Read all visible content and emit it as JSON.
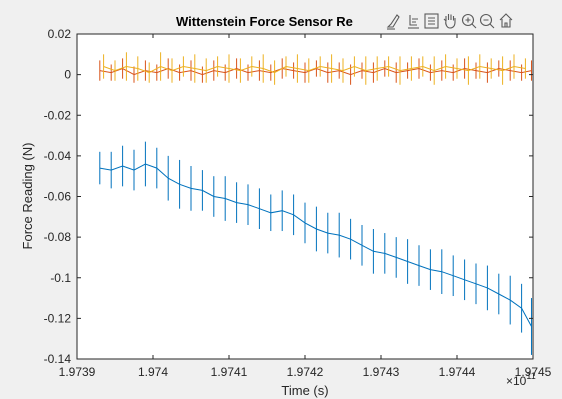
{
  "toolbar": {
    "icons": [
      "brush-icon",
      "data-tips-icon",
      "legend-icon",
      "pan-icon",
      "zoom-in-icon",
      "zoom-out-icon",
      "home-icon"
    ]
  },
  "chart_data": {
    "type": "line",
    "title": "Wittenstein Force Sensor Re",
    "xlabel": "Time (s)",
    "ylabel": "Force Reading (N)",
    "x_exponent_label": "×10",
    "x_exponent_power": "11",
    "xlim": [
      1.9739,
      1.9745
    ],
    "ylim": [
      -0.14,
      0.02
    ],
    "x_ticks": [
      1.9739,
      1.974,
      1.9741,
      1.9742,
      1.9743,
      1.9744,
      1.9745
    ],
    "x_tick_labels": [
      "1.9739",
      "1.974",
      "1.9741",
      "1.9742",
      "1.9743",
      "1.9744",
      "1.9745"
    ],
    "y_ticks": [
      0.02,
      0,
      -0.02,
      -0.04,
      -0.06,
      -0.08,
      -0.1,
      -0.12,
      -0.14
    ],
    "y_tick_labels": [
      "0.02",
      "0",
      "-0.02",
      "-0.04",
      "-0.06",
      "-0.08",
      "-0.1",
      "-0.12",
      "-0.14"
    ],
    "grid": false,
    "series": [
      {
        "color": "#0072bd",
        "x": [
          1.97393,
          1.973945,
          1.97396,
          1.973975,
          1.97399,
          1.974005,
          1.97402,
          1.974035,
          1.97405,
          1.974065,
          1.97408,
          1.974095,
          1.97411,
          1.974125,
          1.97414,
          1.974155,
          1.97417,
          1.974185,
          1.9742,
          1.974215,
          1.97423,
          1.974245,
          1.97426,
          1.974275,
          1.97429,
          1.974305,
          1.97432,
          1.974335,
          1.97435,
          1.974365,
          1.97438,
          1.974395,
          1.97441,
          1.974425,
          1.97444,
          1.974455,
          1.97447,
          1.974485,
          1.974498
        ],
        "y": [
          -0.046,
          -0.047,
          -0.045,
          -0.047,
          -0.044,
          -0.046,
          -0.051,
          -0.054,
          -0.056,
          -0.057,
          -0.06,
          -0.061,
          -0.063,
          -0.064,
          -0.066,
          -0.068,
          -0.067,
          -0.069,
          -0.073,
          -0.076,
          -0.078,
          -0.079,
          -0.081,
          -0.084,
          -0.087,
          -0.088,
          -0.09,
          -0.092,
          -0.094,
          -0.096,
          -0.097,
          -0.099,
          -0.101,
          -0.103,
          -0.105,
          -0.108,
          -0.111,
          -0.115,
          -0.124
        ],
        "err": [
          0.008,
          0.009,
          0.01,
          0.01,
          0.011,
          0.01,
          0.011,
          0.012,
          0.011,
          0.01,
          0.01,
          0.011,
          0.01,
          0.01,
          0.01,
          0.009,
          0.01,
          0.01,
          0.01,
          0.011,
          0.01,
          0.011,
          0.01,
          0.01,
          0.011,
          0.01,
          0.01,
          0.011,
          0.01,
          0.01,
          0.011,
          0.01,
          0.01,
          0.01,
          0.011,
          0.01,
          0.012,
          0.012,
          0.014
        ]
      },
      {
        "color": "#d95319",
        "x": [
          1.97393,
          1.973945,
          1.97396,
          1.973975,
          1.97399,
          1.974005,
          1.97402,
          1.974035,
          1.97405,
          1.974065,
          1.97408,
          1.974095,
          1.97411,
          1.974125,
          1.97414,
          1.974155,
          1.97417,
          1.974185,
          1.9742,
          1.974215,
          1.97423,
          1.974245,
          1.97426,
          1.974275,
          1.97429,
          1.974305,
          1.97432,
          1.974335,
          1.97435,
          1.974365,
          1.97438,
          1.974395,
          1.97441,
          1.974425,
          1.97444,
          1.974455,
          1.97447,
          1.974485,
          1.974498
        ],
        "y": [
          0.002,
          0.001,
          0.003,
          0.0,
          0.002,
          0.001,
          0.003,
          0.001,
          0.002,
          0.0,
          0.002,
          0.001,
          0.003,
          0.001,
          0.002,
          0.001,
          0.003,
          0.002,
          0.001,
          0.003,
          0.001,
          0.002,
          0.0,
          0.002,
          0.001,
          0.003,
          0.001,
          0.002,
          0.003,
          0.001,
          0.002,
          0.001,
          0.003,
          0.002,
          0.001,
          0.003,
          0.002,
          0.001,
          0.002
        ],
        "err": [
          0.005,
          0.004,
          0.005,
          0.004,
          0.005,
          0.004,
          0.005,
          0.004,
          0.005,
          0.004,
          0.005,
          0.004,
          0.005,
          0.004,
          0.005,
          0.004,
          0.005,
          0.004,
          0.005,
          0.004,
          0.005,
          0.004,
          0.005,
          0.004,
          0.005,
          0.004,
          0.005,
          0.004,
          0.005,
          0.004,
          0.005,
          0.004,
          0.005,
          0.004,
          0.005,
          0.004,
          0.005,
          0.004,
          0.005
        ]
      },
      {
        "color": "#edb120",
        "x": [
          1.973935,
          1.97395,
          1.973965,
          1.97398,
          1.973995,
          1.97401,
          1.974025,
          1.97404,
          1.974055,
          1.97407,
          1.974085,
          1.9741,
          1.974115,
          1.97413,
          1.974145,
          1.97416,
          1.974175,
          1.97419,
          1.974205,
          1.97422,
          1.974235,
          1.97425,
          1.974265,
          1.97428,
          1.974295,
          1.97431,
          1.974325,
          1.97434,
          1.974355,
          1.97437,
          1.974385,
          1.9744,
          1.974415,
          1.97443,
          1.974445,
          1.97446,
          1.974475,
          1.97449
        ],
        "y": [
          0.004,
          0.002,
          0.004,
          0.003,
          0.001,
          0.004,
          0.002,
          0.004,
          0.003,
          0.002,
          0.004,
          0.003,
          0.002,
          0.004,
          0.003,
          0.001,
          0.004,
          0.003,
          0.002,
          0.004,
          0.003,
          0.002,
          0.004,
          0.002,
          0.003,
          0.004,
          0.002,
          0.003,
          0.004,
          0.002,
          0.004,
          0.003,
          0.002,
          0.004,
          0.003,
          0.002,
          0.004,
          0.003
        ],
        "err": [
          0.006,
          0.005,
          0.007,
          0.006,
          0.005,
          0.007,
          0.006,
          0.005,
          0.007,
          0.006,
          0.005,
          0.007,
          0.006,
          0.005,
          0.007,
          0.006,
          0.005,
          0.007,
          0.006,
          0.005,
          0.007,
          0.006,
          0.005,
          0.007,
          0.006,
          0.005,
          0.007,
          0.006,
          0.005,
          0.007,
          0.006,
          0.005,
          0.007,
          0.006,
          0.005,
          0.007,
          0.006,
          0.005
        ]
      }
    ]
  }
}
